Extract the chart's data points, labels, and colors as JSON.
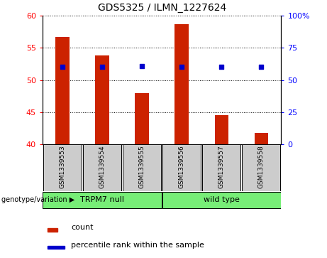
{
  "title": "GDS5325 / ILMN_1227624",
  "samples": [
    "GSM1339553",
    "GSM1339554",
    "GSM1339555",
    "GSM1339556",
    "GSM1339557",
    "GSM1339558"
  ],
  "bar_values": [
    56.7,
    53.8,
    48.0,
    58.7,
    44.5,
    41.8
  ],
  "percentile_values_right": [
    60,
    60,
    61,
    60,
    60,
    60
  ],
  "ylim_left": [
    40,
    60
  ],
  "ylim_right": [
    0,
    100
  ],
  "yticks_left": [
    40,
    45,
    50,
    55,
    60
  ],
  "yticks_right": [
    0,
    25,
    50,
    75,
    100
  ],
  "bar_color": "#cc2200",
  "dot_color": "#0000cc",
  "group1_label": "TRPM7 null",
  "group2_label": "wild type",
  "group1_indices": [
    0,
    1,
    2
  ],
  "group2_indices": [
    3,
    4,
    5
  ],
  "group_color": "#77ee77",
  "sample_box_color": "#cccccc",
  "genotype_label": "genotype/variation",
  "legend_count": "count",
  "legend_percentile": "percentile rank within the sample",
  "background_color": "#ffffff",
  "bar_width": 0.35
}
